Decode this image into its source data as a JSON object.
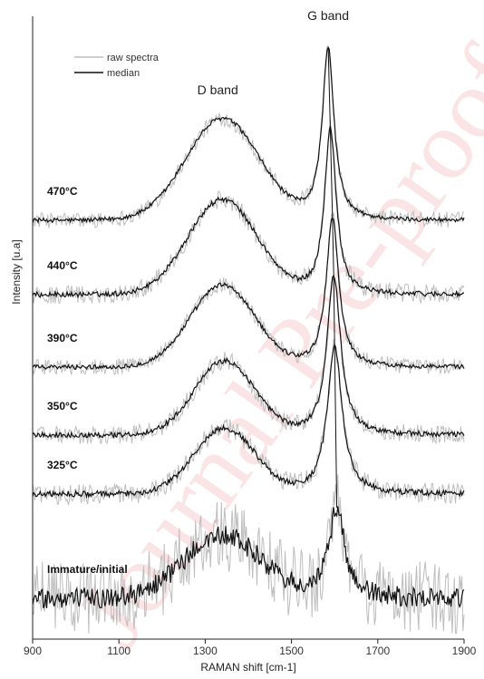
{
  "chart_data": {
    "type": "line",
    "title": "",
    "xlabel": "RAMAN shift [cm-1]",
    "ylabel": "Intensity [u.a]",
    "xlim": [
      900,
      1900
    ],
    "xticks": [
      900,
      1100,
      1300,
      1500,
      1700,
      1900
    ],
    "grid": false,
    "legend": {
      "position": "top-left",
      "entries": [
        {
          "label": "raw spectra",
          "color": "#bdbdbd"
        },
        {
          "label": "median",
          "color": "#111111"
        }
      ]
    },
    "annotations": [
      {
        "text": "D band",
        "x": 1350
      },
      {
        "text": "G band",
        "x": 1585
      }
    ],
    "series": [
      {
        "name": "470°C",
        "offset": 5,
        "d_pos": 1340,
        "d_height": 0.62,
        "d_width": 85,
        "g_pos": 1585,
        "g_height": 1.05,
        "g_width": 30,
        "noise": 0.03
      },
      {
        "name": "440°C",
        "offset": 4,
        "d_pos": 1340,
        "d_height": 0.58,
        "d_width": 80,
        "g_pos": 1590,
        "g_height": 1.02,
        "g_width": 30,
        "noise": 0.035
      },
      {
        "name": "390°C",
        "offset": 3,
        "d_pos": 1340,
        "d_height": 0.5,
        "d_width": 75,
        "g_pos": 1595,
        "g_height": 0.92,
        "g_width": 32,
        "noise": 0.03
      },
      {
        "name": "350°C",
        "offset": 2,
        "d_pos": 1345,
        "d_height": 0.45,
        "d_width": 70,
        "g_pos": 1598,
        "g_height": 0.98,
        "g_width": 35,
        "noise": 0.035
      },
      {
        "name": "325°C",
        "offset": 1,
        "d_pos": 1345,
        "d_height": 0.4,
        "d_width": 70,
        "g_pos": 1600,
        "g_height": 0.9,
        "g_width": 38,
        "noise": 0.04
      },
      {
        "name": "Immature/initial",
        "offset": 0,
        "d_pos": 1340,
        "d_height": 0.38,
        "d_width": 90,
        "g_pos": 1605,
        "g_height": 0.55,
        "g_width": 40,
        "noise": 0.14
      }
    ],
    "trend_line": {
      "from_x": 1585,
      "to_x": 1605
    }
  },
  "watermark": {
    "text": "Journal Pre-proof",
    "color": "#dd1f26"
  }
}
